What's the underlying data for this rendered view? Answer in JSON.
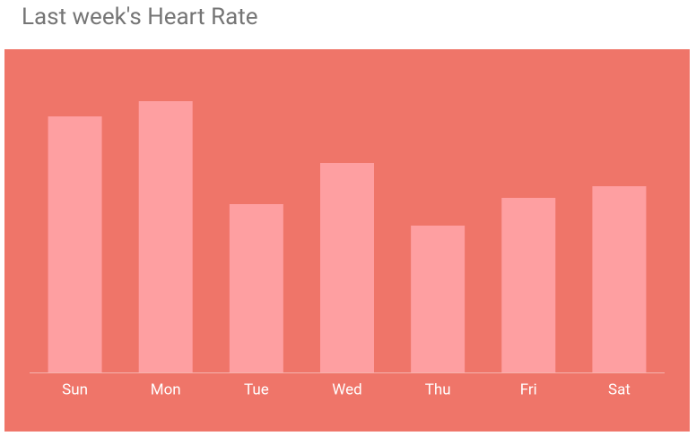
{
  "chart_data": {
    "type": "bar",
    "title": "Last week's Heart Rate",
    "categories": [
      "Sun",
      "Mon",
      "Tue",
      "Wed",
      "Thu",
      "Fri",
      "Sat"
    ],
    "values": [
      286,
      303,
      188,
      234,
      164,
      195,
      208
    ],
    "color": "#fe9fa1",
    "background_color": "#ef7569"
  }
}
